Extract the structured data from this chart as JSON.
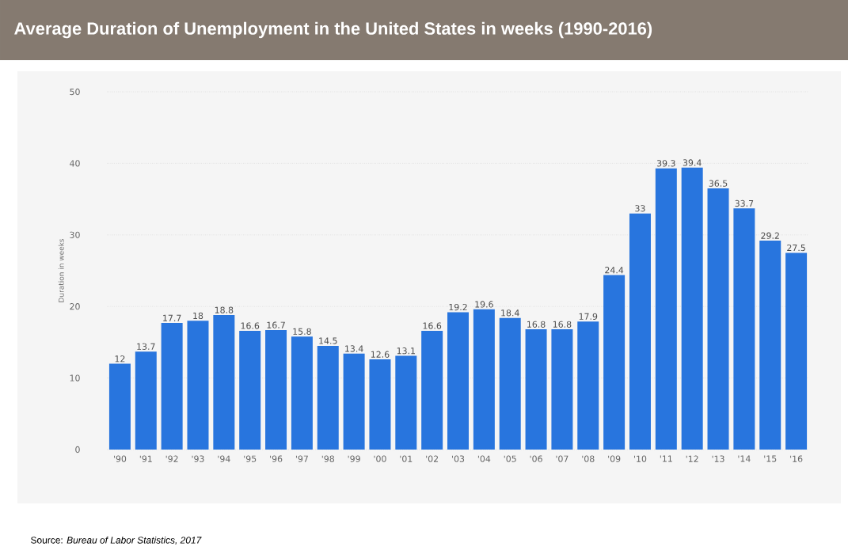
{
  "chart_data": {
    "type": "bar",
    "title": "Average Duration of Unemployment in the United States in weeks (1990-2016)",
    "ylabel": "Duration in weeks",
    "categories": [
      "'90",
      "'91",
      "'92",
      "'93",
      "'94",
      "'95",
      "'96",
      "'97",
      "'98",
      "'99",
      "'00",
      "'01",
      "'02",
      "'03",
      "'04",
      "'05",
      "'06",
      "'07",
      "'08",
      "'09",
      "'10",
      "'11",
      "'12",
      "'13",
      "'14",
      "'15",
      "'16"
    ],
    "values": [
      12,
      13.7,
      17.7,
      18,
      18.8,
      16.6,
      16.7,
      15.8,
      14.5,
      13.4,
      12.6,
      13.1,
      16.6,
      19.2,
      19.6,
      18.4,
      16.8,
      16.8,
      17.9,
      24.4,
      33,
      39.3,
      39.4,
      36.5,
      33.7,
      29.2,
      27.5
    ],
    "color": "#2875de",
    "ylim": [
      0,
      50
    ],
    "yticks": [
      0,
      10,
      20,
      30,
      40,
      50
    ],
    "grid": "y",
    "data_labels": true,
    "annotations": [
      "Source: *Bureau of Labor Statistics, 2017*"
    ]
  }
}
